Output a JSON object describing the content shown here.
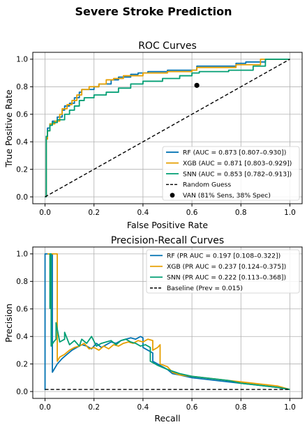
{
  "figure": {
    "suptitle": "Severe Stroke Prediction"
  },
  "colors": {
    "RF": "#0072B2",
    "XGB": "#E69F00",
    "SNN": "#009E73",
    "reference": "#000000"
  },
  "chart_data": [
    {
      "type": "line",
      "title": "ROC Curves",
      "xlabel": "False Positive Rate",
      "ylabel": "True Positive Rate",
      "xlim": [
        -0.05,
        1.05
      ],
      "ylim": [
        -0.05,
        1.05
      ],
      "xticks": [
        "0.0",
        "0.2",
        "0.4",
        "0.6",
        "0.8",
        "1.0"
      ],
      "yticks": [
        "0.0",
        "0.2",
        "0.4",
        "0.6",
        "0.8",
        "1.0"
      ],
      "grid": true,
      "legend_position": "lower-right",
      "series": [
        {
          "name": "RF (AUC = 0.873 [0.807–0.930])",
          "key": "RF",
          "style": "solid",
          "x": [
            0,
            0.005,
            0.005,
            0.01,
            0.01,
            0.02,
            0.02,
            0.03,
            0.03,
            0.05,
            0.05,
            0.07,
            0.07,
            0.08,
            0.08,
            0.1,
            0.1,
            0.12,
            0.12,
            0.14,
            0.14,
            0.15,
            0.15,
            0.17,
            0.17,
            0.2,
            0.2,
            0.22,
            0.22,
            0.27,
            0.27,
            0.3,
            0.3,
            0.35,
            0.35,
            0.38,
            0.38,
            0.42,
            0.42,
            0.5,
            0.5,
            0.62,
            0.62,
            0.78,
            0.78,
            0.82,
            0.82,
            0.9,
            0.9,
            1.0
          ],
          "y": [
            0,
            0.0,
            0.42,
            0.42,
            0.5,
            0.5,
            0.53,
            0.53,
            0.55,
            0.55,
            0.58,
            0.58,
            0.63,
            0.63,
            0.66,
            0.66,
            0.68,
            0.68,
            0.72,
            0.72,
            0.76,
            0.76,
            0.78,
            0.78,
            0.78,
            0.78,
            0.8,
            0.8,
            0.82,
            0.82,
            0.85,
            0.85,
            0.87,
            0.87,
            0.89,
            0.89,
            0.9,
            0.9,
            0.91,
            0.91,
            0.92,
            0.92,
            0.95,
            0.95,
            0.97,
            0.97,
            0.98,
            0.98,
            1.0,
            1.0
          ]
        },
        {
          "name": "XGB (AUC = 0.871 [0.803–0.929])",
          "key": "XGB",
          "style": "solid",
          "x": [
            0,
            0.005,
            0.005,
            0.01,
            0.01,
            0.02,
            0.02,
            0.04,
            0.04,
            0.06,
            0.06,
            0.07,
            0.07,
            0.09,
            0.09,
            0.11,
            0.11,
            0.13,
            0.13,
            0.15,
            0.15,
            0.18,
            0.18,
            0.22,
            0.22,
            0.25,
            0.25,
            0.28,
            0.28,
            0.32,
            0.32,
            0.4,
            0.4,
            0.5,
            0.5,
            0.6,
            0.6,
            0.62,
            0.62,
            0.78,
            0.78,
            0.88,
            0.88,
            1.0
          ],
          "y": [
            0,
            0.0,
            0.42,
            0.42,
            0.48,
            0.48,
            0.53,
            0.53,
            0.55,
            0.55,
            0.6,
            0.6,
            0.64,
            0.64,
            0.67,
            0.67,
            0.7,
            0.7,
            0.74,
            0.74,
            0.78,
            0.78,
            0.8,
            0.8,
            0.82,
            0.82,
            0.85,
            0.85,
            0.86,
            0.86,
            0.88,
            0.88,
            0.9,
            0.9,
            0.91,
            0.91,
            0.92,
            0.92,
            0.94,
            0.94,
            0.96,
            0.96,
            1.0,
            1.0
          ]
        },
        {
          "name": "SNN (AUC = 0.853 [0.782–0.913])",
          "key": "SNN",
          "style": "solid",
          "x": [
            0,
            0.005,
            0.005,
            0.01,
            0.01,
            0.02,
            0.02,
            0.03,
            0.03,
            0.05,
            0.05,
            0.08,
            0.08,
            0.1,
            0.1,
            0.12,
            0.12,
            0.14,
            0.14,
            0.16,
            0.16,
            0.2,
            0.2,
            0.25,
            0.25,
            0.3,
            0.3,
            0.35,
            0.35,
            0.4,
            0.4,
            0.48,
            0.48,
            0.55,
            0.55,
            0.6,
            0.6,
            0.63,
            0.63,
            0.75,
            0.75,
            0.85,
            0.85,
            0.9,
            0.9,
            1.0
          ],
          "y": [
            0,
            0.0,
            0.44,
            0.44,
            0.48,
            0.48,
            0.52,
            0.52,
            0.54,
            0.54,
            0.56,
            0.56,
            0.6,
            0.6,
            0.63,
            0.63,
            0.66,
            0.66,
            0.7,
            0.7,
            0.72,
            0.72,
            0.74,
            0.74,
            0.76,
            0.76,
            0.79,
            0.79,
            0.82,
            0.82,
            0.84,
            0.84,
            0.86,
            0.86,
            0.88,
            0.88,
            0.9,
            0.9,
            0.91,
            0.91,
            0.92,
            0.92,
            0.95,
            0.95,
            1.0,
            1.0
          ]
        },
        {
          "name": "Random Guess",
          "key": "reference",
          "style": "dashed",
          "x": [
            0,
            1
          ],
          "y": [
            0,
            1
          ]
        },
        {
          "name": "VAN (81% Sens, 38% Spec)",
          "key": "reference",
          "style": "point",
          "x": [
            0.62
          ],
          "y": [
            0.81
          ]
        }
      ]
    },
    {
      "type": "line",
      "title": "Precision-Recall Curves",
      "xlabel": "Recall",
      "ylabel": "Precision",
      "xlim": [
        -0.05,
        1.05
      ],
      "ylim": [
        -0.05,
        1.05
      ],
      "xticks": [
        "0.0",
        "0.2",
        "0.4",
        "0.6",
        "0.8",
        "1.0"
      ],
      "yticks": [
        "0.0",
        "0.2",
        "0.4",
        "0.6",
        "0.8",
        "1.0"
      ],
      "grid": true,
      "legend_position": "upper-right",
      "series": [
        {
          "name": "RF (PR AUC = 0.197 [0.108–0.322])",
          "key": "RF",
          "style": "solid",
          "x": [
            0,
            0,
            0.03,
            0.03,
            0.05,
            0.07,
            0.09,
            0.11,
            0.13,
            0.15,
            0.17,
            0.19,
            0.21,
            0.23,
            0.25,
            0.27,
            0.29,
            0.31,
            0.33,
            0.35,
            0.37,
            0.39,
            0.4,
            0.4,
            0.42,
            0.44,
            0.44,
            0.46,
            0.48,
            0.5,
            0.52,
            0.55,
            0.6,
            0.65,
            0.7,
            0.75,
            0.8,
            0.85,
            0.9,
            0.95,
            1.0
          ],
          "y": [
            0.01,
            1.0,
            1.0,
            0.14,
            0.2,
            0.24,
            0.27,
            0.3,
            0.32,
            0.34,
            0.33,
            0.31,
            0.35,
            0.32,
            0.34,
            0.36,
            0.35,
            0.37,
            0.38,
            0.39,
            0.38,
            0.4,
            0.39,
            0.32,
            0.3,
            0.28,
            0.22,
            0.2,
            0.18,
            0.16,
            0.13,
            0.12,
            0.1,
            0.09,
            0.08,
            0.07,
            0.06,
            0.05,
            0.04,
            0.03,
            0.015
          ]
        },
        {
          "name": "XGB (PR AUC = 0.237 [0.124–0.375])",
          "key": "XGB",
          "style": "solid",
          "x": [
            0.01,
            0.01,
            0.05,
            0.05,
            0.06,
            0.08,
            0.1,
            0.12,
            0.14,
            0.16,
            0.18,
            0.2,
            0.22,
            0.24,
            0.26,
            0.28,
            0.3,
            0.32,
            0.34,
            0.36,
            0.38,
            0.4,
            0.42,
            0.44,
            0.44,
            0.46,
            0.47,
            0.47,
            0.5,
            0.52,
            0.55,
            0.6,
            0.65,
            0.7,
            0.75,
            0.8,
            0.85,
            0.9,
            0.95,
            1.0
          ],
          "y": [
            1.0,
            1.0,
            1.0,
            0.22,
            0.25,
            0.27,
            0.3,
            0.32,
            0.33,
            0.35,
            0.31,
            0.32,
            0.3,
            0.33,
            0.31,
            0.34,
            0.33,
            0.35,
            0.36,
            0.35,
            0.37,
            0.36,
            0.38,
            0.37,
            0.3,
            0.32,
            0.34,
            0.2,
            0.18,
            0.14,
            0.12,
            0.11,
            0.1,
            0.09,
            0.08,
            0.07,
            0.06,
            0.05,
            0.04,
            0.015
          ]
        },
        {
          "name": "SNN (PR AUC = 0.222 [0.113–0.368])",
          "key": "SNN",
          "style": "solid",
          "x": [
            0.02,
            0.02,
            0.025,
            0.025,
            0.035,
            0.045,
            0.045,
            0.06,
            0.08,
            0.08,
            0.1,
            0.12,
            0.14,
            0.15,
            0.17,
            0.19,
            0.21,
            0.23,
            0.25,
            0.27,
            0.29,
            0.31,
            0.33,
            0.35,
            0.37,
            0.39,
            0.41,
            0.43,
            0.43,
            0.46,
            0.5,
            0.55,
            0.6,
            0.65,
            0.7,
            0.75,
            0.8,
            0.85,
            0.9,
            0.95,
            1.0
          ],
          "y": [
            0.6,
            1.0,
            1.0,
            0.33,
            0.36,
            0.38,
            0.5,
            0.36,
            0.38,
            0.43,
            0.34,
            0.37,
            0.33,
            0.38,
            0.35,
            0.4,
            0.33,
            0.35,
            0.36,
            0.37,
            0.34,
            0.37,
            0.38,
            0.36,
            0.35,
            0.33,
            0.34,
            0.32,
            0.22,
            0.19,
            0.16,
            0.13,
            0.11,
            0.1,
            0.09,
            0.08,
            0.06,
            0.05,
            0.04,
            0.03,
            0.015
          ]
        },
        {
          "name": "Baseline (Prev = 0.015)",
          "key": "reference",
          "style": "dashed",
          "x": [
            0,
            1
          ],
          "y": [
            0.015,
            0.015
          ]
        }
      ]
    }
  ]
}
